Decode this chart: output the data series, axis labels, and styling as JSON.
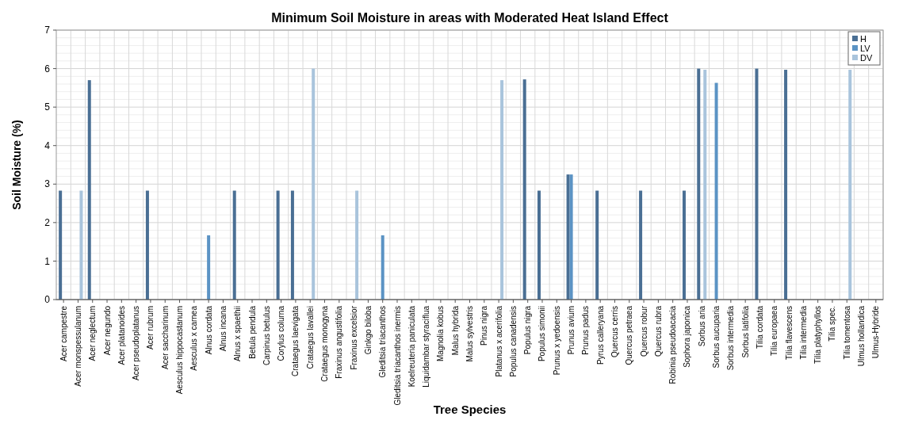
{
  "chart_data": {
    "type": "bar",
    "title": "Minimum Soil Moisture in areas with Moderated Heat Island Effect",
    "xlabel": "Tree Species",
    "ylabel": "Soil Moisture (%)",
    "categories": [
      "Acer campestre",
      "Acer monspessulanum",
      "Acer neglectum",
      "Acer negundo",
      "Acer platanoides",
      "Acer pseudoplatanus",
      "Acer rubrum",
      "Acer saccharinum",
      "Aesculus hippocastanum",
      "Aesculus x carnea",
      "Alnus cordata",
      "Alnus incana",
      "Alnus x spaethii",
      "Betula pendula",
      "Carpinus betulus",
      "Corylus colurna",
      "Crataegus laevigata",
      "Crataegus lavallei",
      "Crataegus monogyna",
      "Fraxinus angustifolia",
      "Fraxinus excelsior",
      "Ginkgo biloba",
      "Gleditsia triacanthos",
      "Gleditsia triacanthos inermis",
      "Koelreuteria paniculata",
      "Liquidambar styraciflua",
      "Magnolia kobus",
      "Malus hybrida",
      "Malus sylvestris",
      "Pinus nigra",
      "Platanus x acerifolia",
      "Populus canadensis",
      "Populus nigra",
      "Populus simonii",
      "Prunus x yedoensis",
      "Prunus avium",
      "Prunus padus",
      "Pyrus calleryana",
      "Quercus cerris",
      "Quercus petraea",
      "Quercus robur",
      "Quercus rubra",
      "Robinia pseudoacacia",
      "Sophora japonica",
      "Sorbus aria",
      "Sorbus aucuparia",
      "Sorbus intermedia",
      "Sorbus latifolia",
      "Tilia cordata",
      "Tilia europaea",
      "Tilia flavescens",
      "Tilia intermedia",
      "Tilia platyphyllos",
      "Tilia spec.",
      "Tilia tomentosa",
      "Ulmus hollandica",
      "Ulmus-Hybride"
    ],
    "series": [
      {
        "name": "H",
        "color": "#4a6f94",
        "values": [
          2.83,
          null,
          5.7,
          null,
          null,
          null,
          2.83,
          null,
          null,
          null,
          null,
          null,
          2.83,
          null,
          null,
          2.83,
          2.83,
          null,
          null,
          null,
          null,
          null,
          null,
          null,
          null,
          null,
          null,
          null,
          null,
          null,
          null,
          null,
          5.72,
          2.83,
          null,
          3.25,
          null,
          2.83,
          null,
          null,
          2.83,
          null,
          null,
          2.83,
          6.0,
          null,
          null,
          null,
          6.0,
          null,
          5.97,
          null,
          null,
          null,
          null,
          null,
          null
        ]
      },
      {
        "name": "LV",
        "color": "#5b93c4",
        "values": [
          null,
          null,
          null,
          null,
          null,
          null,
          null,
          null,
          null,
          null,
          1.67,
          null,
          null,
          null,
          null,
          null,
          null,
          null,
          null,
          null,
          null,
          null,
          1.67,
          null,
          null,
          null,
          null,
          null,
          null,
          null,
          null,
          null,
          null,
          null,
          null,
          3.25,
          null,
          null,
          null,
          null,
          null,
          null,
          null,
          null,
          null,
          5.63,
          null,
          null,
          null,
          null,
          null,
          null,
          null,
          null,
          null,
          null,
          null
        ]
      },
      {
        "name": "DV",
        "color": "#a9c4dc",
        "values": [
          null,
          2.83,
          null,
          null,
          null,
          null,
          null,
          null,
          null,
          null,
          null,
          null,
          null,
          null,
          null,
          null,
          null,
          6.0,
          null,
          null,
          2.83,
          null,
          null,
          null,
          null,
          null,
          null,
          null,
          null,
          null,
          5.7,
          null,
          null,
          null,
          null,
          null,
          null,
          null,
          null,
          null,
          null,
          null,
          null,
          null,
          5.97,
          null,
          null,
          null,
          null,
          null,
          null,
          null,
          null,
          null,
          5.97,
          null,
          null
        ]
      }
    ],
    "ylim": [
      0,
      7
    ],
    "yticks": [
      0,
      1,
      2,
      3,
      4,
      5,
      6,
      7
    ],
    "grid": true,
    "legend": "top right"
  }
}
